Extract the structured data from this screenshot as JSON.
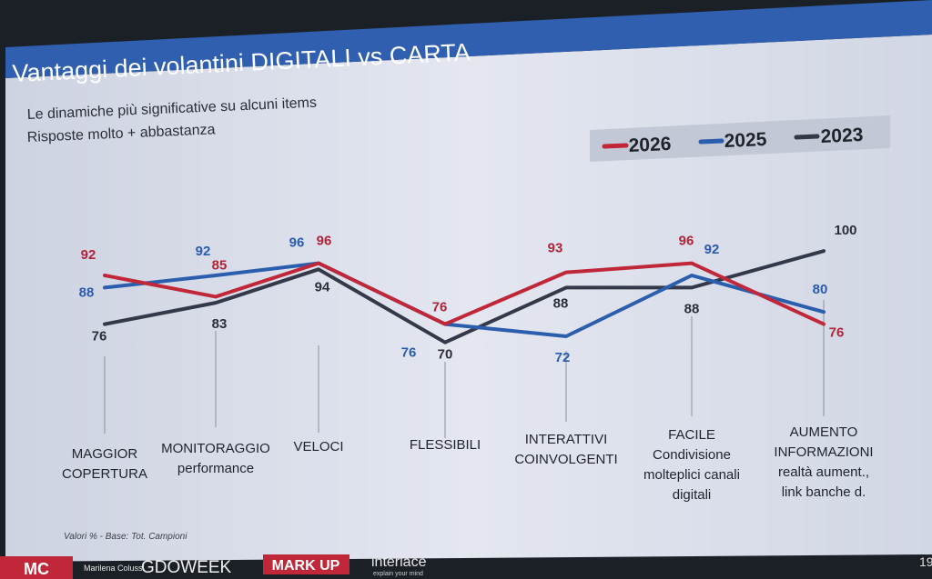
{
  "slide": {
    "title": "Vantaggi dei volantini DIGITALI vs CARTA",
    "subtitle_line1": "Le dinamiche più significative su alcuni items",
    "subtitle_line2": "Risposte molto + abbastanza",
    "footnote": "Valori % - Base: Tot. Campioni",
    "page_number": "19",
    "author": "Marilena Colussi",
    "logos": [
      "GDOWEEK",
      "MARK UP",
      "interlace",
      "explain your mind"
    ]
  },
  "colors": {
    "2026": "#c0283a",
    "2025": "#2c5eae",
    "2023": "#34394a",
    "header": "#2f5fae"
  },
  "chart_data": {
    "type": "line",
    "categories": [
      [
        "MAGGIOR",
        "COPERTURA"
      ],
      [
        "MONITORAGGIO",
        "performance"
      ],
      [
        "VELOCI"
      ],
      [
        "FLESSIBILI"
      ],
      [
        "INTERATTIVI",
        "COINVOLGENTI"
      ],
      [
        "FACILE",
        "Condivisione",
        "molteplici canali",
        "digitali"
      ],
      [
        "AUMENTO",
        "INFORMAZIONI",
        "realtà aument.,",
        "link banche d."
      ]
    ],
    "series": [
      {
        "name": "2026",
        "values": [
          92,
          85,
          96,
          76,
          93,
          96,
          76
        ]
      },
      {
        "name": "2025",
        "values": [
          88,
          92,
          96,
          76,
          72,
          92,
          80
        ]
      },
      {
        "name": "2023",
        "values": [
          76,
          83,
          94,
          70,
          88,
          88,
          100
        ]
      }
    ],
    "legend_position": "top-right",
    "grid": false
  }
}
